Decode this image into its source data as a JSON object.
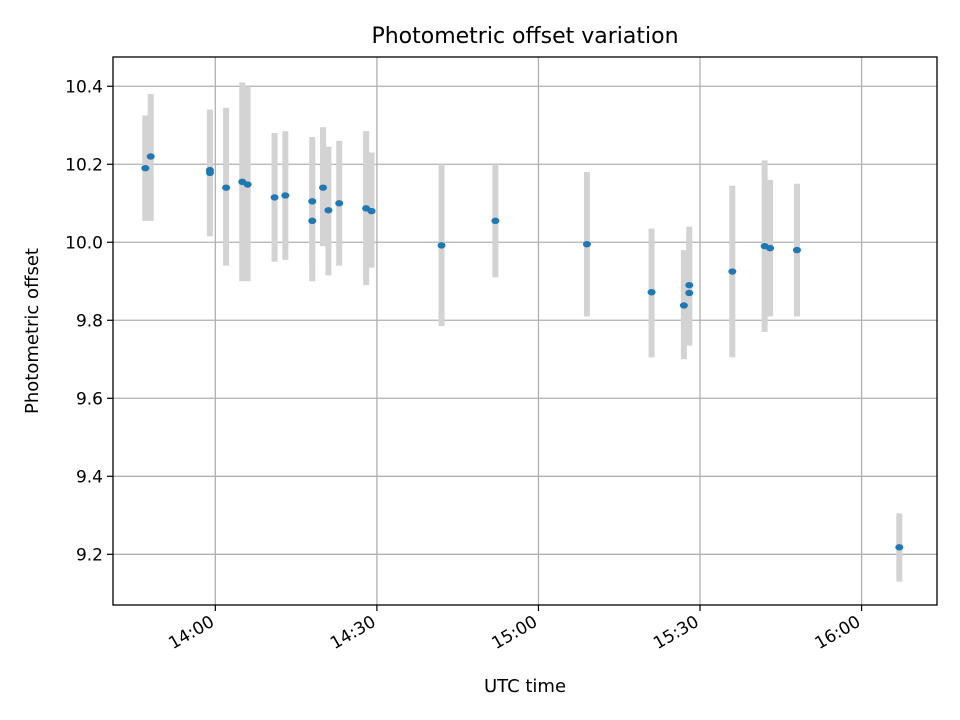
{
  "chart_data": {
    "type": "scatter",
    "title": "Photometric offset variation",
    "xlabel": "UTC time",
    "ylabel": "Photometric offset",
    "xlim": [
      "13:41",
      "16:14"
    ],
    "ylim": [
      9.07,
      10.475
    ],
    "x_ticks": [
      "14:00",
      "14:30",
      "15:00",
      "15:30",
      "16:00"
    ],
    "y_ticks": [
      "9.2",
      "9.4",
      "9.6",
      "9.8",
      "10.0",
      "10.2",
      "10.4"
    ],
    "grid": true,
    "colors": {
      "points": "#1f77b4",
      "error_bars": "#d3d3d3"
    },
    "series": [
      {
        "points": [
          {
            "time": "13:47",
            "value": 10.19,
            "low": 10.055,
            "high": 10.325
          },
          {
            "time": "13:48",
            "value": 10.22,
            "low": 10.055,
            "high": 10.38
          },
          {
            "time": "13:59",
            "value": 10.185,
            "low": 10.035,
            "high": 10.335
          },
          {
            "time": "13:59",
            "value": 10.178,
            "low": 10.015,
            "high": 10.34
          },
          {
            "time": "14:02",
            "value": 10.14,
            "low": 9.94,
            "high": 10.345
          },
          {
            "time": "14:05",
            "value": 10.155,
            "low": 9.9,
            "high": 10.41
          },
          {
            "time": "14:06",
            "value": 10.148,
            "low": 9.9,
            "high": 10.4
          },
          {
            "time": "14:11",
            "value": 10.115,
            "low": 9.95,
            "high": 10.28
          },
          {
            "time": "14:13",
            "value": 10.12,
            "low": 9.955,
            "high": 10.285
          },
          {
            "time": "14:18",
            "value": 10.055,
            "low": 9.9,
            "high": 10.205
          },
          {
            "time": "14:18",
            "value": 10.105,
            "low": 9.945,
            "high": 10.27
          },
          {
            "time": "14:20",
            "value": 10.14,
            "low": 9.99,
            "high": 10.295
          },
          {
            "time": "14:21",
            "value": 10.082,
            "low": 9.915,
            "high": 10.245
          },
          {
            "time": "14:23",
            "value": 10.1,
            "low": 9.94,
            "high": 10.26
          },
          {
            "time": "14:28",
            "value": 10.087,
            "low": 9.89,
            "high": 10.285
          },
          {
            "time": "14:29",
            "value": 10.08,
            "low": 9.935,
            "high": 10.23
          },
          {
            "time": "14:42",
            "value": 9.992,
            "low": 9.785,
            "high": 10.2
          },
          {
            "time": "14:52",
            "value": 10.055,
            "low": 9.91,
            "high": 10.2
          },
          {
            "time": "15:09",
            "value": 9.995,
            "low": 9.81,
            "high": 10.18
          },
          {
            "time": "15:21",
            "value": 9.872,
            "low": 9.705,
            "high": 10.035
          },
          {
            "time": "15:27",
            "value": 9.838,
            "low": 9.7,
            "high": 9.98
          },
          {
            "time": "15:28",
            "value": 9.87,
            "low": 9.735,
            "high": 10.005
          },
          {
            "time": "15:28",
            "value": 9.89,
            "low": 9.745,
            "high": 10.04
          },
          {
            "time": "15:36",
            "value": 9.925,
            "low": 9.705,
            "high": 10.145
          },
          {
            "time": "15:42",
            "value": 9.99,
            "low": 9.77,
            "high": 10.21
          },
          {
            "time": "15:43",
            "value": 9.985,
            "low": 9.81,
            "high": 10.16
          },
          {
            "time": "15:48",
            "value": 9.98,
            "low": 9.81,
            "high": 10.15
          },
          {
            "time": "16:07",
            "value": 9.218,
            "low": 9.13,
            "high": 9.305
          }
        ]
      }
    ]
  }
}
